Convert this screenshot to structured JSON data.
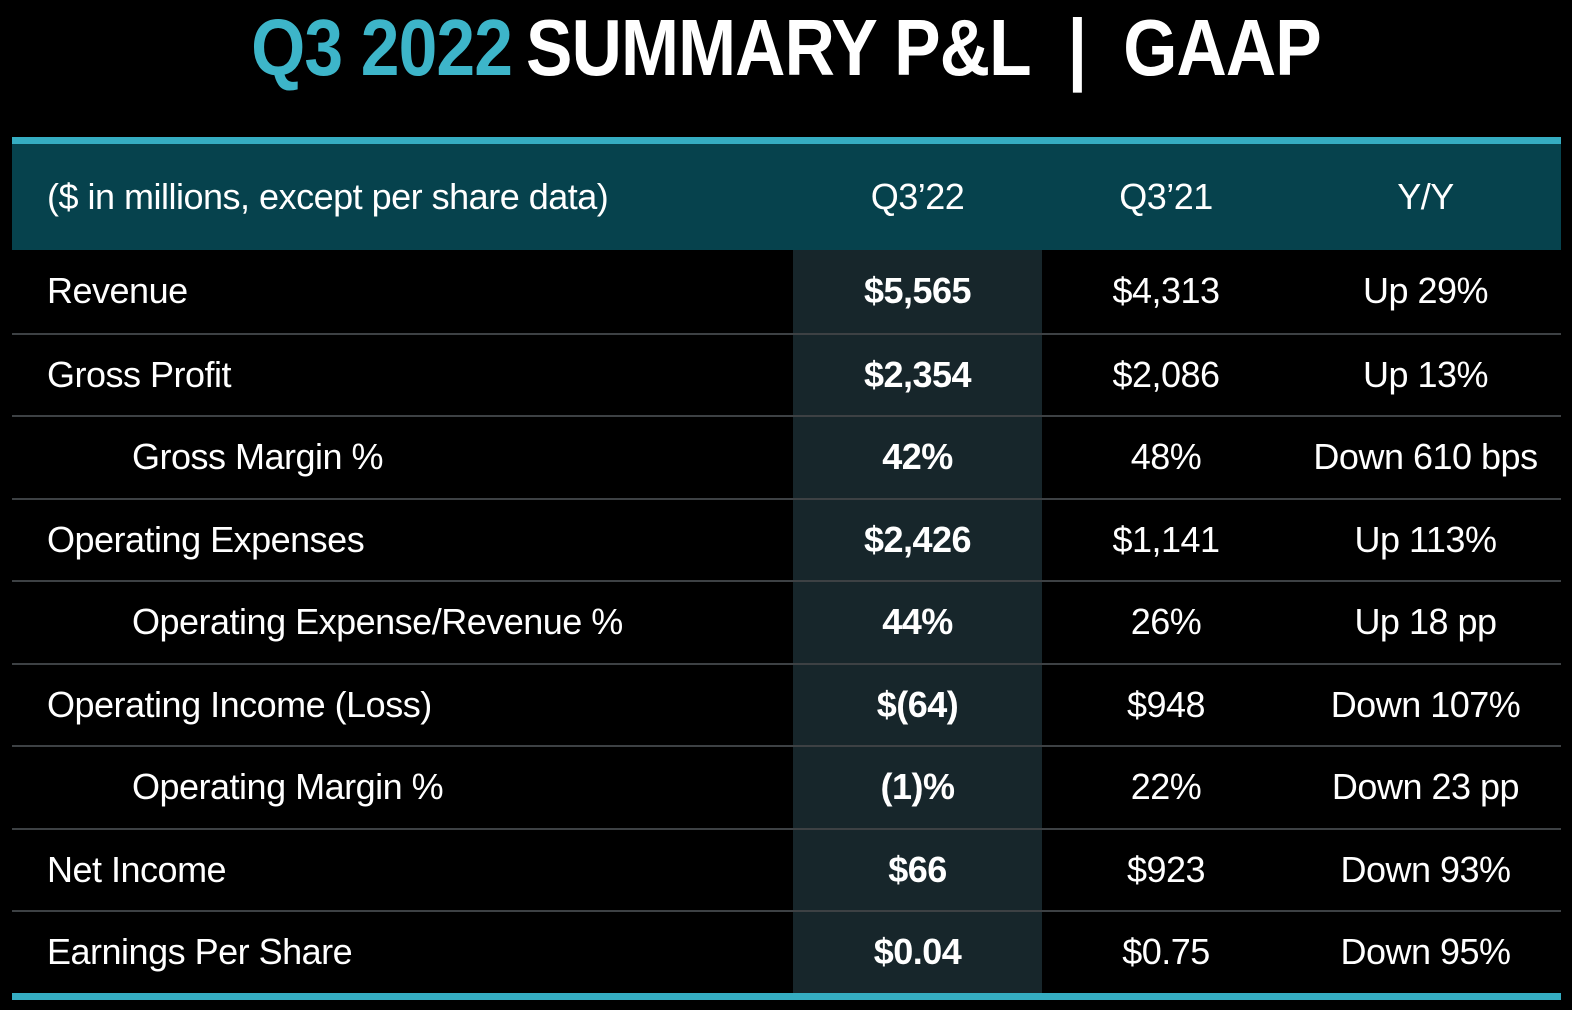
{
  "title": {
    "accent": "Q3 2022",
    "rest": "SUMMARY P&L  |  GAAP"
  },
  "table": {
    "caption": "($ in millions, except per share data)",
    "columns": [
      "Q3’22",
      "Q3’21",
      "Y/Y"
    ],
    "rows": [
      {
        "label": "Revenue",
        "indent": false,
        "q322": "$5,565",
        "q321": "$4,313",
        "yy": "Up 29%"
      },
      {
        "label": "Gross Profit",
        "indent": false,
        "q322": "$2,354",
        "q321": "$2,086",
        "yy": "Up 13%"
      },
      {
        "label": "Gross Margin %",
        "indent": true,
        "q322": "42%",
        "q321": "48%",
        "yy": "Down 610 bps"
      },
      {
        "label": "Operating Expenses",
        "indent": false,
        "q322": "$2,426",
        "q321": "$1,141",
        "yy": "Up 113%"
      },
      {
        "label": "Operating Expense/Revenue %",
        "indent": true,
        "q322": "44%",
        "q321": "26%",
        "yy": "Up 18 pp"
      },
      {
        "label": "Operating Income (Loss)",
        "indent": false,
        "q322": "$(64)",
        "q321": "$948",
        "yy": "Down 107%"
      },
      {
        "label": "Operating Margin %",
        "indent": true,
        "q322": "(1)%",
        "q321": "22%",
        "yy": "Down 23 pp"
      },
      {
        "label": "Net Income",
        "indent": false,
        "q322": "$66",
        "q321": "$923",
        "yy": "Down 93%"
      },
      {
        "label": "Earnings Per Share",
        "indent": false,
        "q322": "$0.04",
        "q321": "$0.75",
        "yy": "Down 95%"
      }
    ]
  },
  "colors": {
    "accent_teal": "#3db5c9",
    "border_teal": "#35adc2",
    "header_background": "#06424d",
    "highlight_column_background": "#17262b",
    "row_separator": "#3d4144",
    "background": "#000000",
    "text": "#ffffff"
  }
}
